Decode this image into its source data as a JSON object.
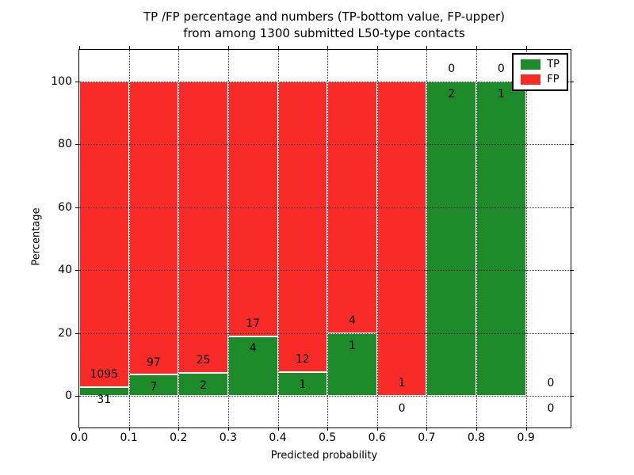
{
  "chart_data": {
    "type": "bar",
    "stacked": true,
    "title_line1": "TP /FP percentage and numbers (TP-bottom value, FP-upper)",
    "title_line2": "from among 1300 submitted L50-type contacts",
    "xlabel": "Predicted probability",
    "ylabel": "Percentage",
    "xlim": [
      0,
      0.99
    ],
    "ylim": [
      -10,
      110
    ],
    "x_ticks": [
      0,
      0.1,
      0.2,
      0.3,
      0.4,
      0.5,
      0.6,
      0.7,
      0.8,
      0.9
    ],
    "x_tick_labels": [
      "0.0",
      "0.1",
      "0.2",
      "0.3",
      "0.4",
      "0.5",
      "0.6",
      "0.7",
      "0.8",
      "0.9"
    ],
    "y_ticks": [
      0,
      20,
      40,
      60,
      80,
      100
    ],
    "y_tick_labels": [
      "0",
      "20",
      "40",
      "60",
      "80",
      "100"
    ],
    "grid": true,
    "legend_position": "upper-right",
    "colors": {
      "tp": "#1e8b2b",
      "fp": "#f82b29",
      "bar_edge": "#ffffff"
    },
    "legend": [
      {
        "label": "TP",
        "color": "#1e8b2b"
      },
      {
        "label": "FP",
        "color": "#f82b29"
      }
    ],
    "label_offset_pct": 4,
    "bins": [
      {
        "range": [
          0.0,
          0.1
        ],
        "tp": 31,
        "fp": 1095
      },
      {
        "range": [
          0.1,
          0.2
        ],
        "tp": 7,
        "fp": 97
      },
      {
        "range": [
          0.2,
          0.3
        ],
        "tp": 2,
        "fp": 25
      },
      {
        "range": [
          0.3,
          0.4
        ],
        "tp": 4,
        "fp": 17
      },
      {
        "range": [
          0.4,
          0.5
        ],
        "tp": 1,
        "fp": 12
      },
      {
        "range": [
          0.5,
          0.6
        ],
        "tp": 1,
        "fp": 4
      },
      {
        "range": [
          0.6,
          0.7
        ],
        "tp": 0,
        "fp": 1
      },
      {
        "range": [
          0.7,
          0.8
        ],
        "tp": 2,
        "fp": 0
      },
      {
        "range": [
          0.8,
          0.9
        ],
        "tp": 1,
        "fp": 0
      },
      {
        "range": [
          0.9,
          1.0
        ],
        "tp": 0,
        "fp": 0
      }
    ]
  }
}
